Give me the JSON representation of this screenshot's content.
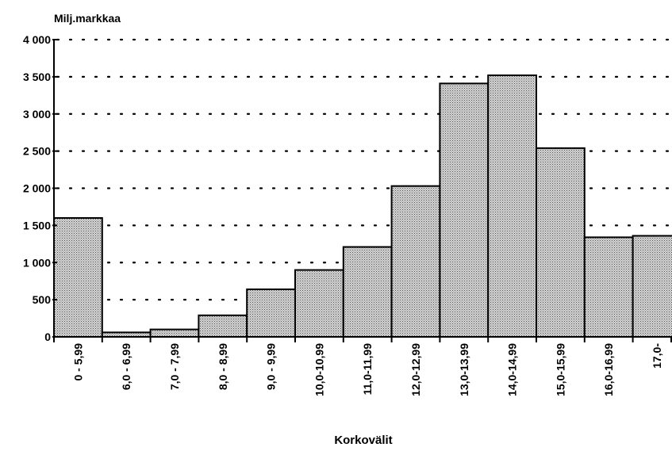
{
  "chart_data": {
    "type": "bar",
    "ylabel": "Milj.markkaa",
    "xlabel": "Korkovälit",
    "ylim": [
      0,
      4000
    ],
    "yticks": [
      "0",
      "500",
      "1 000",
      "1 500",
      "2 000",
      "2 500",
      "3 000",
      "3 500",
      "4 000"
    ],
    "ytick_values": [
      0,
      500,
      1000,
      1500,
      2000,
      2500,
      3000,
      3500,
      4000
    ],
    "grid": "dotted horizontal",
    "categories": [
      "0 - 5,99",
      "6,0 - 6,99",
      "7,0 - 7,99",
      "8,0 - 8,99",
      "9,0 - 9,99",
      "10,0-10,99",
      "11,0-11,99",
      "12,0-12,99",
      "13,0-13,99",
      "14,0-14,99",
      "15,0-15,99",
      "16,0-16,99",
      "17,0-"
    ],
    "values": [
      1600,
      60,
      100,
      290,
      640,
      900,
      1210,
      2030,
      3410,
      3520,
      2540,
      1340,
      1360
    ],
    "bar_fill": "#bdbdbd",
    "bar_stroke": "#000000"
  }
}
